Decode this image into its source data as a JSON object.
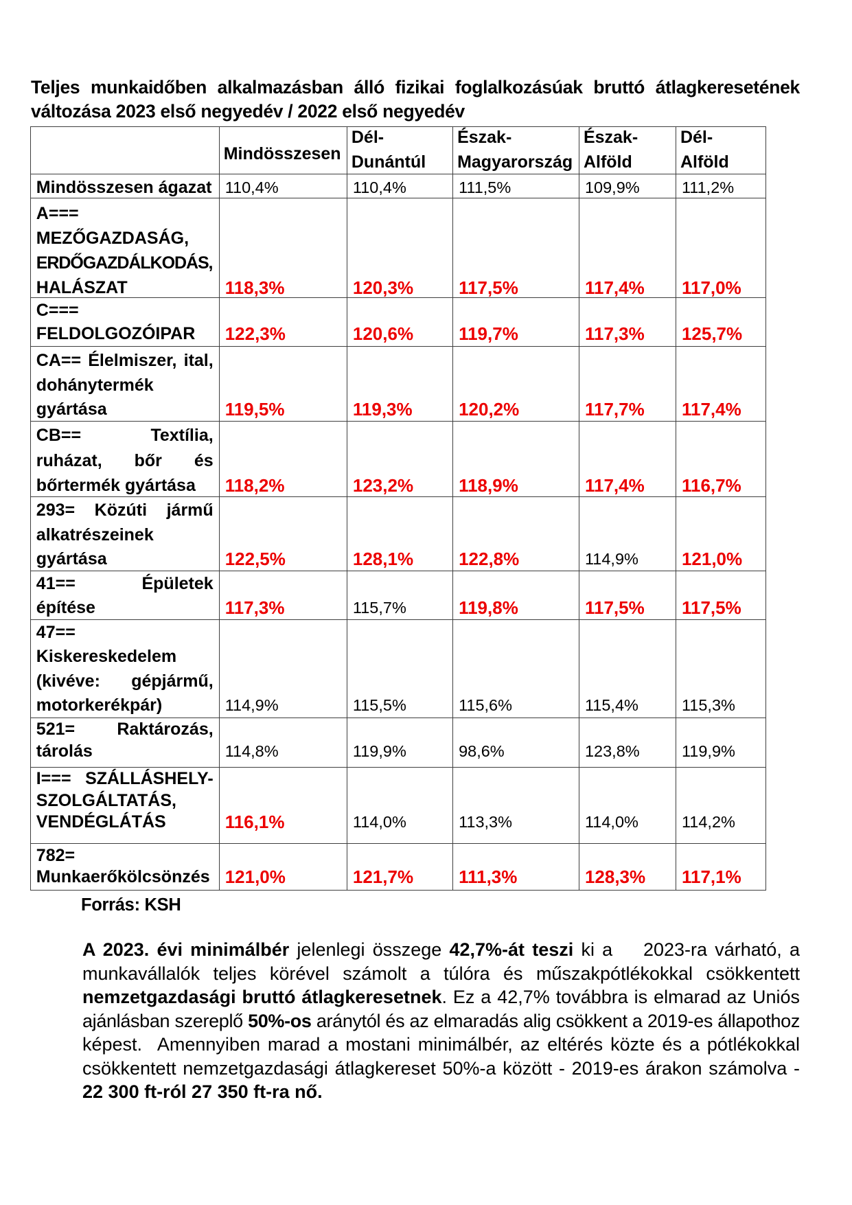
{
  "colors": {
    "text": "#000000",
    "highlight_red": "#ec0000",
    "table_border": "#3e3e3e",
    "page_background": "#ffffff"
  },
  "title": {
    "lines": [
      "Teljes munkaidőben alkalmazásban álló fizikai foglalkozásúak bruttó átlagkeresetének",
      "változása 2023 első negyedév / 2022 első negyedév"
    ]
  },
  "table": {
    "header": {
      "row_label_column": "",
      "columns": [
        {
          "lines": [
            "Mindösszesen"
          ]
        },
        {
          "lines": [
            "Dél-",
            "Dunántúl"
          ]
        },
        {
          "lines": [
            "Észak-",
            "Magyarország"
          ]
        },
        {
          "lines": [
            "Észak-",
            "Alföld"
          ]
        },
        {
          "lines": [
            "Dél-",
            "Alföld"
          ]
        }
      ]
    },
    "rows": [
      {
        "label_lines": [
          "Mindösszesen ágazat"
        ],
        "justify": false,
        "small": false,
        "values": [
          {
            "text": "110,4%",
            "red": false
          },
          {
            "text": "110,4%",
            "red": false
          },
          {
            "text": "111,5%",
            "red": false
          },
          {
            "text": "109,9%",
            "red": false
          },
          {
            "text": "111,2%",
            "red": false
          }
        ]
      },
      {
        "label_lines": [
          "A===",
          "MEZŐGAZDASÁG,",
          "ERDŐGAZDÁLKODÁS,",
          "HALÁSZAT"
        ],
        "justify": true,
        "small": false,
        "values": [
          {
            "text": "118,3%",
            "red": true
          },
          {
            "text": "120,3%",
            "red": true
          },
          {
            "text": "117,5%",
            "red": true
          },
          {
            "text": "117,4%",
            "red": true
          },
          {
            "text": "117,0%",
            "red": true
          }
        ]
      },
      {
        "label_lines": [
          "C===",
          "FELDOLGOZÓIPAR"
        ],
        "justify": true,
        "small": false,
        "values": [
          {
            "text": "122,3%",
            "red": true
          },
          {
            "text": "120,6%",
            "red": true
          },
          {
            "text": "119,7%",
            "red": true
          },
          {
            "text": "117,3%",
            "red": true
          },
          {
            "text": "125,7%",
            "red": true
          }
        ]
      },
      {
        "label_lines": [
          "CA== Élelmiszer, ital,",
          "dohánytermék",
          "gyártása"
        ],
        "justify": true,
        "small": false,
        "values": [
          {
            "text": "119,5%",
            "red": true
          },
          {
            "text": "119,3%",
            "red": true
          },
          {
            "text": "120,2%",
            "red": true
          },
          {
            "text": "117,7%",
            "red": true
          },
          {
            "text": "117,4%",
            "red": true
          }
        ]
      },
      {
        "label_lines": [
          "CB== Textília,",
          "ruházat, bőr és",
          "bőrtermék gyártása"
        ],
        "justify": true,
        "small": false,
        "values": [
          {
            "text": "118,2%",
            "red": true
          },
          {
            "text": "123,2%",
            "red": true
          },
          {
            "text": "118,9%",
            "red": true
          },
          {
            "text": "117,4%",
            "red": true
          },
          {
            "text": "116,7%",
            "red": true
          }
        ]
      },
      {
        "label_lines": [
          "293= Közúti jármű",
          "alkatrészeinek",
          "gyártása"
        ],
        "justify": true,
        "small": false,
        "values": [
          {
            "text": "122,5%",
            "red": true
          },
          {
            "text": "128,1%",
            "red": true
          },
          {
            "text": "122,8%",
            "red": true
          },
          {
            "text": "114,9%",
            "red": false
          },
          {
            "text": "121,0%",
            "red": true
          }
        ]
      },
      {
        "label_lines": [
          "41== Épületek",
          "építése"
        ],
        "justify": true,
        "small": false,
        "values": [
          {
            "text": "117,3%",
            "red": true
          },
          {
            "text": "115,7%",
            "red": false
          },
          {
            "text": "119,8%",
            "red": true
          },
          {
            "text": "117,5%",
            "red": true
          },
          {
            "text": "117,5%",
            "red": true
          }
        ]
      },
      {
        "label_lines": [
          "47==",
          "Kiskereskedelem",
          "(kivéve: gépjármű,",
          "motorkerékpár)"
        ],
        "justify": true,
        "small": false,
        "values": [
          {
            "text": "114,9%",
            "red": false
          },
          {
            "text": "115,5%",
            "red": false
          },
          {
            "text": "115,6%",
            "red": false
          },
          {
            "text": "115,4%",
            "red": false
          },
          {
            "text": "115,3%",
            "red": false
          }
        ]
      },
      {
        "label_lines": [
          "521= Raktározás,",
          "tárolás"
        ],
        "justify": true,
        "small": true,
        "values": [
          {
            "text": "114,8%",
            "red": false
          },
          {
            "text": "119,9%",
            "red": false
          },
          {
            "text": "98,6%",
            "red": false
          },
          {
            "text": "123,8%",
            "red": false
          },
          {
            "text": "119,9%",
            "red": false
          }
        ]
      },
      {
        "label_lines": [
          "I=== SZÁLLÁSHELY-",
          "SZOLGÁLTATÁS,",
          "VENDÉGLÁTÁS"
        ],
        "justify": true,
        "small": true,
        "values": [
          {
            "text": "116,1%",
            "red": true
          },
          {
            "text": "114,0%",
            "red": false
          },
          {
            "text": "113,3%",
            "red": false
          },
          {
            "text": "114,0%",
            "red": false
          },
          {
            "text": "114,2%",
            "red": false
          }
        ]
      },
      {
        "label_lines": [
          "782=",
          "Munkaerőkölcsönzés"
        ],
        "justify": true,
        "small": true,
        "values": [
          {
            "text": "121,0%",
            "red": true
          },
          {
            "text": "121,7%",
            "red": true
          },
          {
            "text": "111,3%",
            "red": true
          },
          {
            "text": "128,3%",
            "red": true
          },
          {
            "text": "117,1%",
            "red": true
          }
        ]
      }
    ]
  },
  "source": {
    "text": "Forrás: KSH"
  },
  "paragraph": {
    "lines": [
      {
        "last": false,
        "segments": [
          {
            "text": "A 2023. évi minimálbér",
            "bold": true
          },
          {
            "text": " jelenlegi összege ",
            "bold": false
          },
          {
            "text": "42,7%-át teszi",
            "bold": true
          },
          {
            "text": " ki a    2023-ra várható, a",
            "bold": false
          }
        ]
      },
      {
        "last": false,
        "segments": [
          {
            "text": "munkavállalók teljes körével számolt a túlóra és műszakpótlékokkal csökkentett",
            "bold": false
          }
        ]
      },
      {
        "last": false,
        "segments": [
          {
            "text": "nemzetgazdasági bruttó átlagkeresetnek",
            "bold": true
          },
          {
            "text": ". Ez a 42,7% továbbra is elmarad az Uniós",
            "bold": false
          }
        ]
      },
      {
        "last": false,
        "segments": [
          {
            "text": "ajánlásban szereplő ",
            "bold": false
          },
          {
            "text": "50%-os",
            "bold": true
          },
          {
            "text": " aránytól és az elmaradás alig csökkent a 2019-es állapothoz",
            "bold": false
          }
        ]
      },
      {
        "last": false,
        "segments": [
          {
            "text": "képest.  Amennyiben marad a mostani minimálbér, az eltérés közte és a pótlékokkal",
            "bold": false
          }
        ]
      },
      {
        "last": false,
        "segments": [
          {
            "text": "csökkentett nemzetgazdasági átlagkereset 50%-a között - 2019-es árakon számolva -",
            "bold": false
          }
        ]
      },
      {
        "last": true,
        "segments": [
          {
            "text": "22 300 ft-ról 27 350 ft-ra nő.",
            "bold": true
          }
        ]
      }
    ]
  }
}
